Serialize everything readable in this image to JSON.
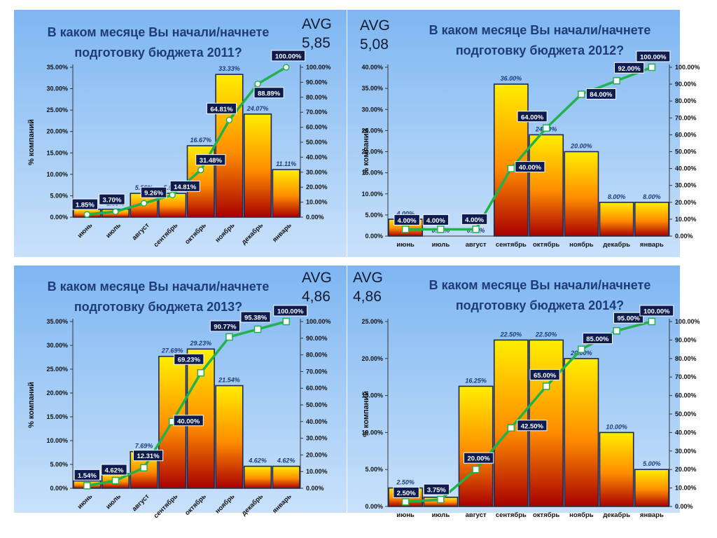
{
  "chart_data": [
    {
      "type": "bar",
      "title": [
        "В каком месяце Вы начали/начнете",
        "подготовку бюджета 2011?"
      ],
      "avg_label": "AVG",
      "avg_value": "5,85",
      "ylabel": "% компаний",
      "categories": [
        "июнь",
        "июль",
        "август",
        "сентябрь",
        "октябрь",
        "ноябрь",
        "декабрь",
        "январь"
      ],
      "x_rotated": true,
      "ylim": [
        0,
        35
      ],
      "yticks": [
        "0.00%",
        "5.00%",
        "10.00%",
        "15.00%",
        "20.00%",
        "25.00%",
        "30.00%",
        "35.00%"
      ],
      "y2lim": [
        0,
        100
      ],
      "y2ticks": [
        "0.00%",
        "10.00%",
        "20.00%",
        "30.00%",
        "40.00%",
        "50.00%",
        "60.00%",
        "70.00%",
        "80.00%",
        "90.00%",
        "100.00%"
      ],
      "series": [
        {
          "type": "bar",
          "values": [
            1.85,
            1.85,
            5.56,
            5.56,
            16.67,
            33.33,
            24.07,
            11.11
          ],
          "labels": [
            "1.85%",
            "1.85%",
            "5.56%",
            "5.56%",
            "16.67%",
            "33.33%",
            "24.07%",
            "11.11%"
          ]
        },
        {
          "type": "line",
          "axis": "right",
          "marker": "circle",
          "values": [
            1.85,
            3.7,
            9.26,
            14.81,
            31.48,
            64.81,
            88.89,
            100.0
          ],
          "labels": [
            "1.85%",
            "3.70%",
            "9.26%",
            "14.81%",
            "31.48%",
            "64.81%",
            "88.89%",
            "100.00%"
          ]
        }
      ]
    },
    {
      "type": "bar",
      "title": [
        "В каком месяце Вы начали/начнете",
        "подготовку бюджета 2012?"
      ],
      "avg_label": "AVG",
      "avg_value": "5,08",
      "ylabel": "% компаний",
      "categories": [
        "июнь",
        "июль",
        "август",
        "сентябрь",
        "октябрь",
        "ноябрь",
        "декабрь",
        "январь"
      ],
      "x_rotated": false,
      "ylim": [
        0,
        40
      ],
      "yticks": [
        "0.00%",
        "5.00%",
        "10.00%",
        "15.00%",
        "20.00%",
        "25.00%",
        "30.00%",
        "35.00%",
        "40.00%"
      ],
      "y2lim": [
        0,
        100
      ],
      "y2ticks": [
        "0.00%",
        "10.00%",
        "20.00%",
        "30.00%",
        "40.00%",
        "50.00%",
        "60.00%",
        "70.00%",
        "80.00%",
        "90.00%",
        "100.00%"
      ],
      "series": [
        {
          "type": "bar",
          "values": [
            4.0,
            0.0,
            0.0,
            36.0,
            24.0,
            20.0,
            8.0,
            8.0
          ],
          "labels": [
            "4.00%",
            "0.00%",
            "0.00%",
            "36.00%",
            "24.00%",
            "20.00%",
            "8.00%",
            "8.00%"
          ]
        },
        {
          "type": "line",
          "axis": "right",
          "marker": "square",
          "values": [
            4.0,
            4.0,
            4.0,
            40.0,
            64.0,
            84.0,
            92.0,
            100.0
          ],
          "labels": [
            "4.00%",
            "4.00%",
            "4.00%",
            "40.00%",
            "64.00%",
            "84.00%",
            "92.00%",
            "100.00%"
          ]
        }
      ]
    },
    {
      "type": "bar",
      "title": [
        "В каком месяце Вы начали/начнете",
        "подготовку бюджета 2013?"
      ],
      "avg_label": "AVG",
      "avg_value": "4,86",
      "ylabel": "% компаний",
      "categories": [
        "июнь",
        "июль",
        "август",
        "сентябрь",
        "октябрь",
        "ноябрь",
        "декабрь",
        "январь"
      ],
      "x_rotated": true,
      "ylim": [
        0,
        35
      ],
      "yticks": [
        "0.00%",
        "5.00%",
        "10.00%",
        "15.00%",
        "20.00%",
        "25.00%",
        "30.00%",
        "35.00%"
      ],
      "y2lim": [
        0,
        100
      ],
      "y2ticks": [
        "0.00%",
        "10.00%",
        "20.00%",
        "30.00%",
        "40.00%",
        "50.00%",
        "60.00%",
        "70.00%",
        "80.00%",
        "90.00%",
        "100.00%"
      ],
      "series": [
        {
          "type": "bar",
          "values": [
            1.54,
            3.08,
            7.69,
            27.69,
            29.23,
            21.54,
            4.62,
            4.62
          ],
          "labels": [
            "1.54%",
            "3.08%",
            "7.69%",
            "27.69%",
            "29.23%",
            "21.54%",
            "4.62%",
            "4.62%"
          ]
        },
        {
          "type": "line",
          "axis": "right",
          "marker": "square",
          "values": [
            1.54,
            4.62,
            12.31,
            40.0,
            69.23,
            90.77,
            95.38,
            100.0
          ],
          "labels": [
            "1.54%",
            "4.62%",
            "12.31%",
            "40.00%",
            "69.23%",
            "90.77%",
            "95.38%",
            "100.00%"
          ]
        }
      ]
    },
    {
      "type": "bar",
      "title": [
        "В каком месяце Вы начали/начнете",
        "подготовку бюджета 2014?"
      ],
      "avg_label": "AVG",
      "avg_value": "4,86",
      "ylabel": "% компаний",
      "categories": [
        "июнь",
        "июль",
        "август",
        "сентябрь",
        "октябрь",
        "ноябрь",
        "декабрь",
        "январь"
      ],
      "x_rotated": false,
      "ylim": [
        0,
        25
      ],
      "yticks": [
        "0.00%",
        "5.00%",
        "10.00%",
        "15.00%",
        "20.00%",
        "25.00%"
      ],
      "y2lim": [
        0,
        100
      ],
      "y2ticks": [
        "0.00%",
        "10.00%",
        "20.00%",
        "30.00%",
        "40.00%",
        "50.00%",
        "60.00%",
        "70.00%",
        "80.00%",
        "90.00%",
        "100.00%"
      ],
      "series": [
        {
          "type": "bar",
          "values": [
            2.5,
            1.25,
            16.25,
            22.5,
            22.5,
            20.0,
            10.0,
            5.0
          ],
          "labels": [
            "2.50%",
            "1.25%",
            "16.25%",
            "22.50%",
            "22.50%",
            "20.00%",
            "10.00%",
            "5.00%"
          ]
        },
        {
          "type": "line",
          "axis": "right",
          "marker": "square",
          "values": [
            2.5,
            3.75,
            20.0,
            42.5,
            65.0,
            85.0,
            95.0,
            100.0
          ],
          "labels": [
            "2.50%",
            "3.75%",
            "20.00%",
            "42.50%",
            "65.00%",
            "85.00%",
            "95.00%",
            "100.00%"
          ]
        }
      ]
    }
  ],
  "colors": {
    "bar_top": "#ffee00",
    "bar_mid": "#ff8c00",
    "bar_bottom": "#a80000",
    "bar_border": "#1a2a55",
    "line": "#22b14c",
    "label_box": "#0d1b4f",
    "bar_label_text": "#1f3b78",
    "title_text": "#1f3b78"
  }
}
